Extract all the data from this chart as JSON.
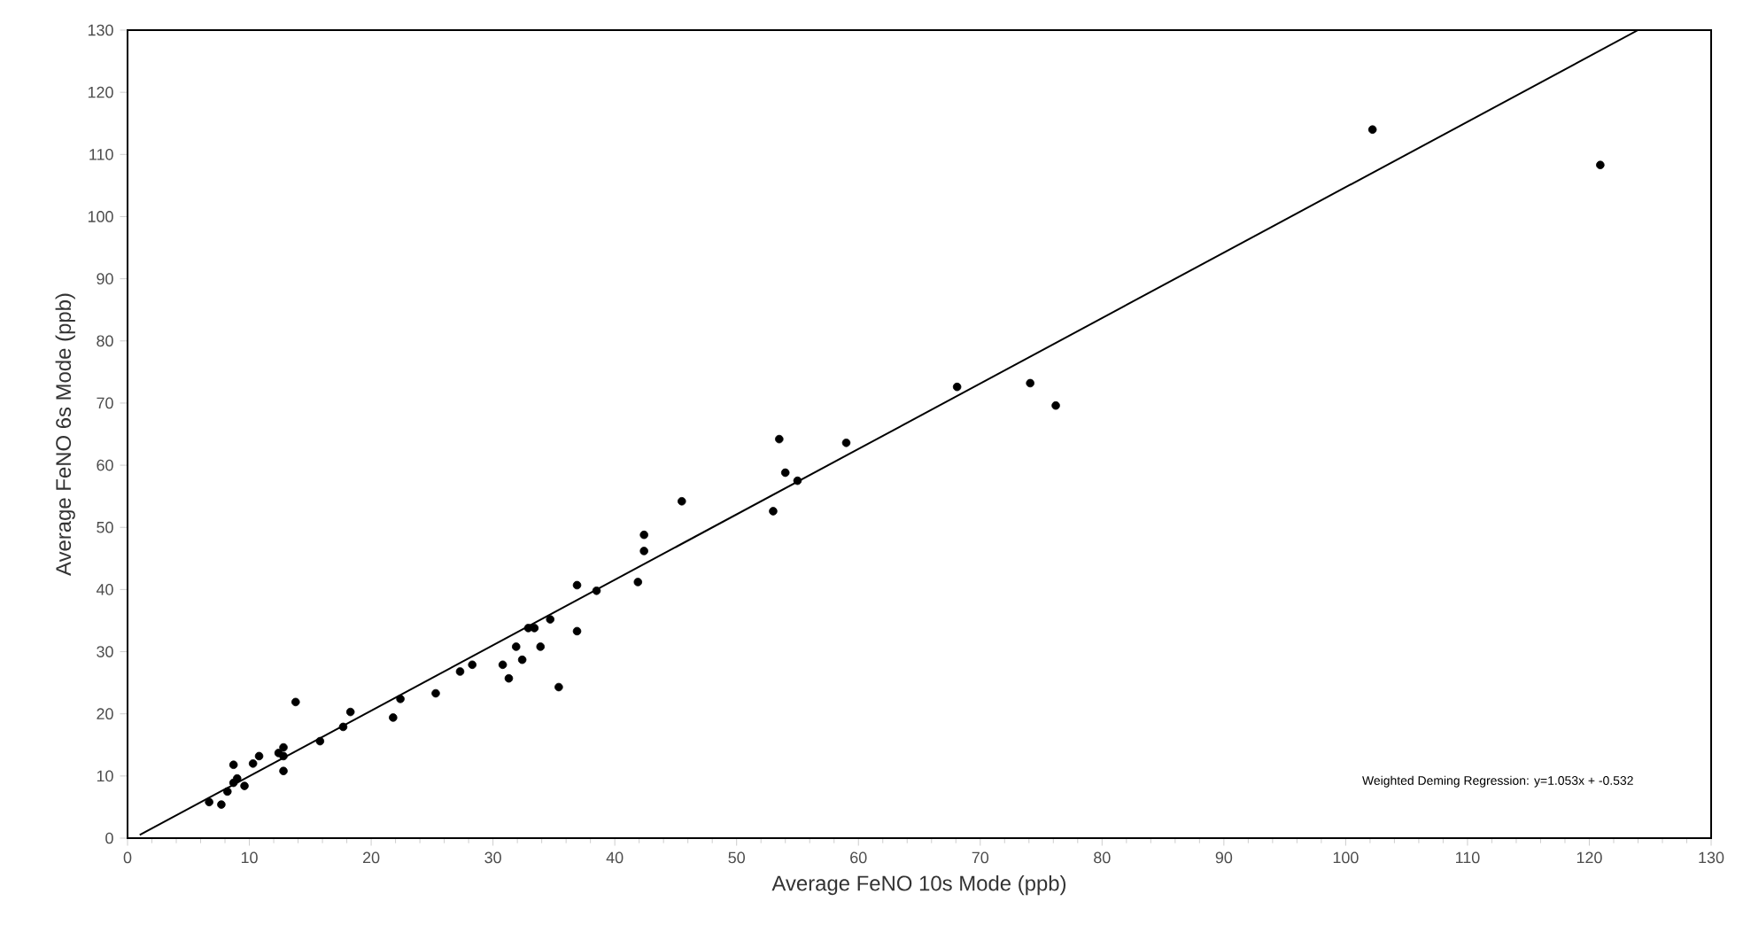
{
  "chart_data": {
    "type": "scatter",
    "xlabel": "Average FeNO 10s Mode (ppb)",
    "ylabel": "Average FeNO 6s Mode (ppb)",
    "xlim": [
      0,
      130
    ],
    "ylim": [
      0,
      130
    ],
    "xticks": [
      0,
      10,
      20,
      30,
      40,
      50,
      60,
      70,
      80,
      90,
      100,
      110,
      120,
      130
    ],
    "yticks": [
      0,
      10,
      20,
      30,
      40,
      50,
      60,
      70,
      80,
      90,
      100,
      110,
      120,
      130
    ],
    "grid": false,
    "annotations": [
      "Weighted Deming Regression: y=1.053x + -0.532"
    ],
    "series": [
      {
        "marker": "circle",
        "color": "#000000",
        "x": [
          102.2,
          120.9,
          53.5,
          59.0,
          68.1,
          74.1,
          76.2,
          54.0,
          55.0,
          53.0,
          45.5,
          42.4,
          42.4,
          41.9,
          36.9,
          38.5,
          34.7,
          36.9,
          32.9,
          33.4,
          31.9,
          33.9,
          32.4,
          30.8,
          31.3,
          28.3,
          27.3,
          35.4,
          25.3,
          22.4,
          21.8,
          18.3,
          17.7,
          13.8,
          15.8,
          12.8,
          12.4,
          12.8,
          10.8,
          10.3,
          8.7,
          12.8,
          9.0,
          9.6,
          8.7,
          8.2,
          7.7,
          6.7
        ],
        "values": [
          114,
          108.3,
          64.2,
          63.6,
          72.6,
          73.2,
          69.6,
          58.8,
          57.5,
          52.6,
          54.2,
          48.8,
          46.2,
          41.2,
          40.7,
          39.8,
          35.2,
          33.3,
          33.8,
          33.8,
          30.8,
          30.8,
          28.7,
          27.9,
          25.7,
          27.9,
          26.8,
          24.3,
          23.3,
          22.4,
          19.4,
          20.3,
          17.9,
          21.9,
          15.6,
          14.6,
          13.7,
          13.2,
          13.2,
          12.0,
          11.8,
          10.8,
          9.6,
          8.4,
          8.9,
          7.5,
          5.4,
          5.8
        ]
      },
      {
        "type": "line",
        "marker": "none",
        "line_style": "solid",
        "color": "#000000",
        "x": [
          1,
          124
        ],
        "values": [
          0.5,
          130
        ]
      }
    ]
  }
}
